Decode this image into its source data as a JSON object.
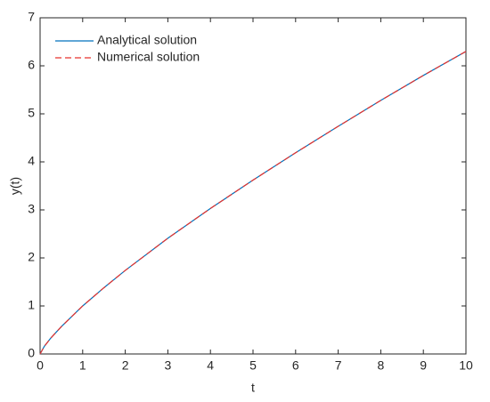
{
  "chart_data": {
    "type": "line",
    "x_label": "t",
    "y_label": "y(t)",
    "x": [
      0,
      0.1,
      0.25,
      0.5,
      1,
      1.5,
      2,
      3,
      4,
      5,
      6,
      7,
      8,
      9,
      10
    ],
    "series": [
      {
        "name": "Analytical solution",
        "color": "#0072bd",
        "dash": false,
        "values": [
          0,
          0.16,
          0.33,
          0.57,
          1.0,
          1.38,
          1.74,
          2.41,
          3.03,
          3.62,
          4.19,
          4.74,
          5.28,
          5.8,
          6.3
        ]
      },
      {
        "name": "Numerical solution",
        "color": "#e8312c",
        "dash": true,
        "values": [
          0,
          0.16,
          0.33,
          0.57,
          1.0,
          1.38,
          1.74,
          2.41,
          3.03,
          3.62,
          4.19,
          4.74,
          5.28,
          5.8,
          6.3
        ]
      }
    ],
    "xlim": [
      0,
      10
    ],
    "xticks": [
      0,
      1,
      2,
      3,
      4,
      5,
      6,
      7,
      8,
      9,
      10
    ],
    "ylim": [
      0,
      7
    ],
    "yticks": [
      0,
      1,
      2,
      3,
      4,
      5,
      6,
      7
    ],
    "legend": "upper-left"
  }
}
